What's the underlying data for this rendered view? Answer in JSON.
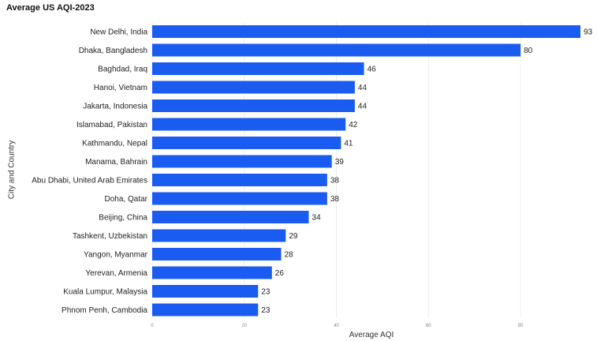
{
  "chart_data": {
    "type": "bar",
    "orientation": "horizontal",
    "title": "Average US AQI-2023",
    "xlabel": "Average AQI",
    "ylabel": "City and Country",
    "categories": [
      "New Delhi, India",
      "Dhaka, Bangladesh",
      "Baghdad, Iraq",
      "Hanoi, Vietnam",
      "Jakarta, Indonesia",
      "Islamabad, Pakistan",
      "Kathmandu, Nepal",
      "Manama, Bahrain",
      "Abu Dhabi, United Arab Emirates",
      "Doha, Qatar",
      "Beijing, China",
      "Tashkent, Uzbekistan",
      "Yangon, Myanmar",
      "Yerevan, Armenia",
      "Kuala Lumpur, Malaysia",
      "Phnom Penh, Cambodia"
    ],
    "values": [
      93,
      80,
      46,
      44,
      44,
      42,
      41,
      39,
      38,
      38,
      34,
      29,
      28,
      26,
      23,
      23
    ],
    "xticks": [
      0,
      20,
      40,
      60,
      80
    ],
    "xlim": [
      0,
      93
    ],
    "grid": true,
    "bar_color": "#1a5cf0"
  }
}
